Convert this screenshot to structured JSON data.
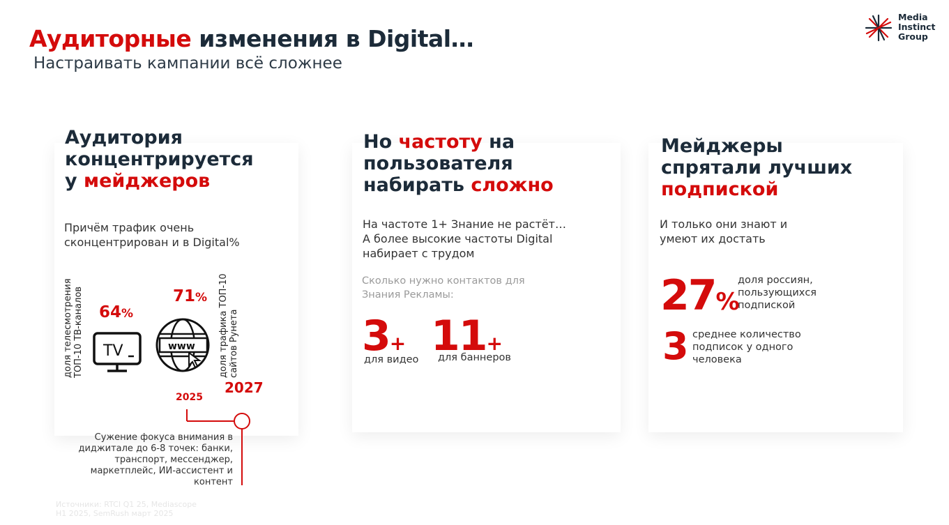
{
  "header": {
    "title_accent": "Аудиторные",
    "title_rest": " изменения в Digital…",
    "subtitle": "Настраивать кампании всё сложнее"
  },
  "logo": {
    "lines": [
      "Media",
      "Instinct",
      "Group"
    ],
    "icon": "asterisk-star-icon",
    "colors": {
      "mark_red": "#d40b0b",
      "mark_dark": "#1c2b39"
    }
  },
  "card1": {
    "heading_line1": "Аудитория",
    "heading_line2": "концентрируется",
    "heading_line3_plain": "у ",
    "heading_line3_accent": "мейджеров",
    "text_line1": "Причём трафик очень",
    "text_line2": "сконцентрирован и в Digital%",
    "tv_label_line1": "доля телесмотрения",
    "tv_label_line2": "ТОП-10 ТВ-каналов",
    "tv_value": "64",
    "tv_unit": "%",
    "tv_icon": "tv-icon",
    "tv_icon_text": "TV",
    "web_value": "71",
    "web_unit": "%",
    "web_icon": "globe-www-icon",
    "web_icon_text": "www",
    "web_label_line1": "доля трафика ТОП-10",
    "web_label_line2": "сайтов Рунета",
    "year_left": "2025",
    "year_right": "2027",
    "note_lines": [
      "Сужение фокуса внимания в",
      "диджитале до 6-8 точек: банки,",
      "транспорт, мессенджер,",
      "маркетплейс, ИИ-ассистент и",
      "контент"
    ]
  },
  "card2": {
    "heading_line1_plain": "Но ",
    "heading_line1_accent": "частоту",
    "heading_line1_rest": " на",
    "heading_line2": "пользователя",
    "heading_line3_plain": "набирать ",
    "heading_line3_accent": "сложно",
    "text_line1": "На частоте 1+ Знание  не растёт…",
    "text_line2": "А более высокие частоты Digital",
    "text_line3": "набирает с трудом",
    "grey_line1": "Сколько нужно контактов для",
    "grey_line2": "Знания Рекламы:",
    "stat1_value": "3",
    "stat1_suffix": "+",
    "stat1_caption": "для видео",
    "stat2_value": "11",
    "stat2_suffix": "+",
    "stat2_caption": "для баннеров"
  },
  "card3": {
    "heading_line1": "Мейджеры",
    "heading_line2": "спрятали лучших",
    "heading_line3_accent": "подпиской",
    "text_line1": "И только они знают и",
    "text_line2": "умеют их достать",
    "stat1_value": "27",
    "stat1_unit": "%",
    "stat1_desc": [
      "доля россиян,",
      "пользующихся",
      "подпиской"
    ],
    "stat2_value": "3",
    "stat2_desc": [
      "среднее количество",
      "подписок у одного",
      "человека"
    ]
  },
  "sources": {
    "line1": "Источники: RTCI Q1 25, Mediascope",
    "line2": "H1 2025, SemRush март 2025"
  },
  "colors": {
    "accent": "#d40b0b",
    "text": "#1c2b39"
  }
}
